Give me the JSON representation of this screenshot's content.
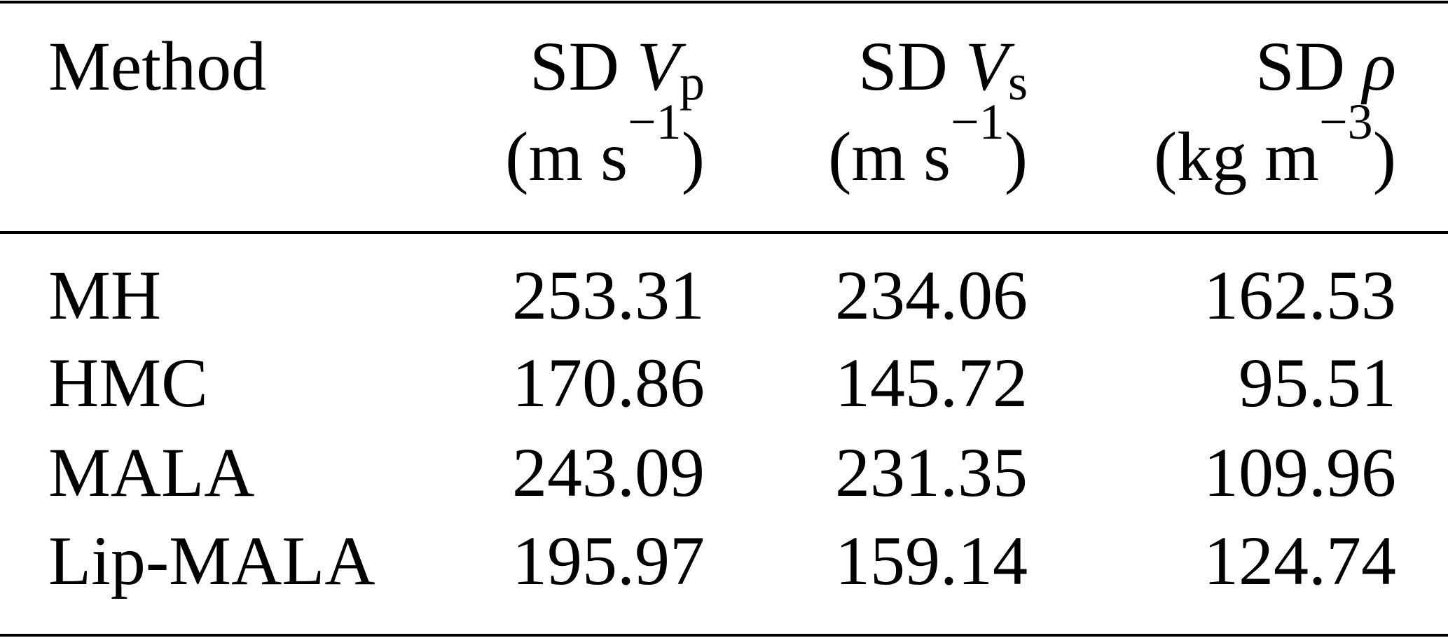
{
  "table": {
    "header": [
      {
        "text": "Method"
      },
      {
        "prefix": "SD",
        "symbol": "V",
        "sub": "p",
        "unit": [
          "(m s",
          "−1",
          ")"
        ]
      },
      {
        "prefix": "SD",
        "symbol": "V",
        "sub": "s",
        "unit": [
          "(m s",
          "−1",
          ")"
        ]
      },
      {
        "prefix": "SD",
        "symbol": "ρ",
        "unit": [
          "(kg m",
          "−3",
          ")"
        ]
      }
    ],
    "rows": [
      [
        "MH",
        "253.31",
        "234.06",
        "162.53"
      ],
      [
        "HMC",
        "170.86",
        "145.72",
        "95.51"
      ],
      [
        "MALA",
        "243.09",
        "231.35",
        "109.96"
      ],
      [
        "Lip-MALA",
        "195.97",
        "159.14",
        "124.74"
      ]
    ]
  }
}
